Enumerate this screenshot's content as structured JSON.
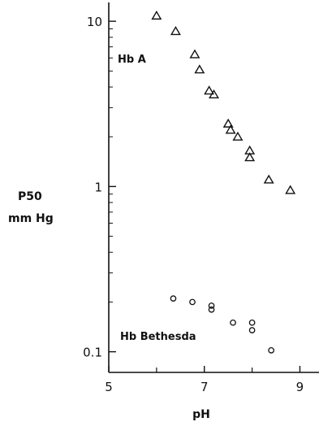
{
  "chart_data": {
    "type": "scatter",
    "title": "",
    "xlabel": "pH",
    "ylabel_main": "P50",
    "ylabel_sub": "mm Hg",
    "x_scale": "linear",
    "y_scale": "log",
    "xlim": [
      5,
      9.4
    ],
    "ylim": [
      0.075,
      13
    ],
    "x_ticks": [
      5,
      7,
      9
    ],
    "x_tick_labels": [
      "5",
      "7",
      "9"
    ],
    "x_minor_ticks": [
      6,
      8
    ],
    "y_ticks": [
      0.1,
      1,
      10
    ],
    "y_tick_labels": [
      "0.1",
      "1",
      "10"
    ],
    "grid": false,
    "series": [
      {
        "name": "Hb A",
        "marker": "triangle",
        "points": [
          {
            "x": 6.0,
            "y": 10.8
          },
          {
            "x": 6.4,
            "y": 8.7
          },
          {
            "x": 6.8,
            "y": 6.3
          },
          {
            "x": 6.9,
            "y": 5.1
          },
          {
            "x": 7.1,
            "y": 3.8
          },
          {
            "x": 7.2,
            "y": 3.6
          },
          {
            "x": 7.5,
            "y": 2.4
          },
          {
            "x": 7.55,
            "y": 2.2
          },
          {
            "x": 7.7,
            "y": 2.0
          },
          {
            "x": 7.95,
            "y": 1.65
          },
          {
            "x": 7.95,
            "y": 1.5
          },
          {
            "x": 8.35,
            "y": 1.1
          },
          {
            "x": 8.8,
            "y": 0.95
          }
        ]
      },
      {
        "name": "Hb Bethesda",
        "marker": "circle",
        "points": [
          {
            "x": 6.35,
            "y": 0.21
          },
          {
            "x": 6.75,
            "y": 0.2
          },
          {
            "x": 7.15,
            "y": 0.19
          },
          {
            "x": 7.15,
            "y": 0.18
          },
          {
            "x": 7.6,
            "y": 0.15
          },
          {
            "x": 8.0,
            "y": 0.15
          },
          {
            "x": 8.0,
            "y": 0.135
          },
          {
            "x": 8.4,
            "y": 0.102
          }
        ]
      }
    ],
    "annotations": [
      "Hb A",
      "Hb Bethesda"
    ]
  }
}
